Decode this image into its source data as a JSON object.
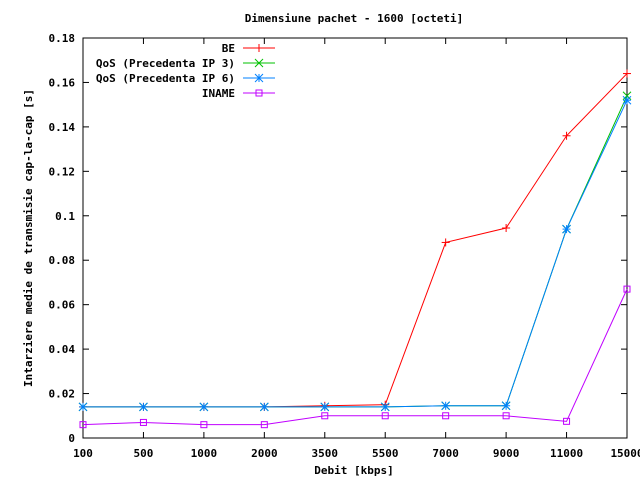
{
  "chart_data": {
    "type": "line",
    "title": "Dimensiune pachet - 1600 [octeti]",
    "xlabel": "Debit [kbps]",
    "ylabel": "Intarziere medie de transmisie cap-la-cap [s]",
    "categories": [
      "100",
      "500",
      "1000",
      "2000",
      "3500",
      "5500",
      "7000",
      "9000",
      "11000",
      "15000"
    ],
    "ylim": [
      0,
      0.18
    ],
    "yticks": [
      "0",
      "0.02",
      "0.04",
      "0.06",
      "0.08",
      "0.1",
      "0.12",
      "0.14",
      "0.16",
      "0.18"
    ],
    "grid": false,
    "legend_position": "top-right",
    "series": [
      {
        "name": "BE",
        "color": "#ff0000",
        "marker": "plus",
        "values": [
          0.014,
          0.014,
          0.014,
          0.014,
          0.0145,
          0.015,
          0.088,
          0.0945,
          0.136,
          0.164
        ]
      },
      {
        "name": "QoS (Precedenta IP 3)",
        "color": "#00c000",
        "marker": "cross",
        "values": [
          0.014,
          0.014,
          0.014,
          0.014,
          0.014,
          0.014,
          0.0145,
          0.0145,
          0.094,
          0.154
        ]
      },
      {
        "name": "QoS (Precedenta IP 6)",
        "color": "#0080ff",
        "marker": "star",
        "values": [
          0.014,
          0.014,
          0.014,
          0.014,
          0.014,
          0.014,
          0.0145,
          0.0145,
          0.094,
          0.152
        ]
      },
      {
        "name": "INAME",
        "color": "#c000ff",
        "marker": "square",
        "values": [
          0.006,
          0.007,
          0.006,
          0.006,
          0.01,
          0.01,
          0.01,
          0.01,
          0.0075,
          0.067
        ]
      }
    ]
  }
}
